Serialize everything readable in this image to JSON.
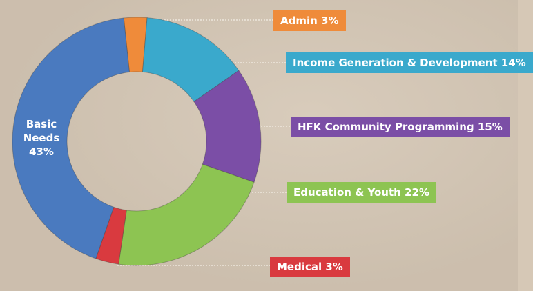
{
  "chart_data": {
    "type": "pie",
    "style": "donut",
    "slices": [
      {
        "name": "Basic Needs",
        "percent_label": "43%",
        "value": 43,
        "color": "#4a7abf"
      },
      {
        "name": "Admin",
        "percent_label": "3%",
        "value": 3,
        "color": "#ef8b3a"
      },
      {
        "name": "Income Generation & Development",
        "percent_label": "14%",
        "value": 14,
        "color": "#3aa9cc"
      },
      {
        "name": "HFK Community Programming",
        "percent_label": "15%",
        "value": 15,
        "color": "#7b4ea6"
      },
      {
        "name": "Education & Youth",
        "percent_label": "22%",
        "value": 22,
        "color": "#8dc452"
      },
      {
        "name": "Medical",
        "percent_label": "3%",
        "value": 3,
        "color": "#d93a3f"
      }
    ],
    "labels": {
      "basic_needs_line1": "Basic",
      "basic_needs_line2": "Needs",
      "basic_needs_percent": "43%",
      "admin": "Admin 3%",
      "income": "Income Generation & Development 14%",
      "hfk": "HFK Community Programming 15%",
      "education": "Education & Youth 22%",
      "medical": "Medical 3%"
    }
  }
}
